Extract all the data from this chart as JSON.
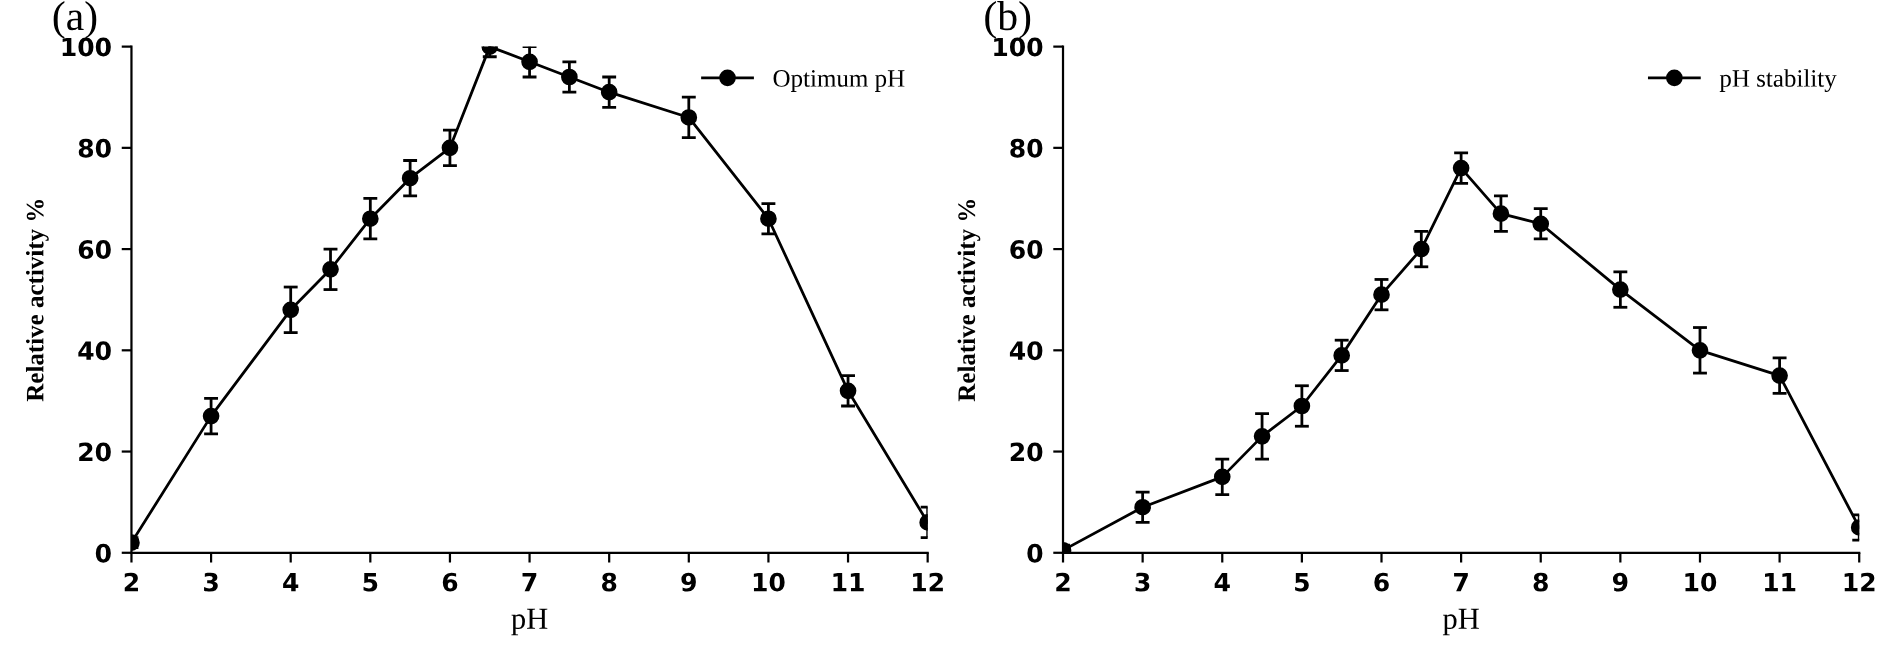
{
  "chart_data": [
    {
      "type": "line",
      "title": "(a)",
      "xlabel": "pH",
      "ylabel": "Relative activity %",
      "xlim": [
        2,
        12
      ],
      "xticks": [
        2,
        3,
        4,
        5,
        6,
        7,
        8,
        9,
        10,
        11,
        12
      ],
      "ylim": [
        0,
        100
      ],
      "yticks": [
        0,
        20,
        40,
        60,
        80,
        100
      ],
      "grid": false,
      "legend": "top right",
      "marker": "circle",
      "line_style": "solid",
      "x": [
        2,
        3,
        4,
        4.5,
        5,
        5.5,
        6,
        6.5,
        7,
        7.5,
        8,
        9,
        10,
        11,
        12
      ],
      "series": [
        {
          "name": "Optimum pH",
          "color": "#000000",
          "values": [
            2,
            27,
            48,
            56,
            66,
            74,
            80,
            100,
            97,
            94,
            91,
            86,
            66,
            32,
            6
          ],
          "errors": [
            1,
            3.5,
            4.5,
            4,
            4,
            3.5,
            3.5,
            2,
            3,
            3,
            3,
            4,
            3,
            3,
            3
          ]
        }
      ]
    },
    {
      "type": "line",
      "title": "(b)",
      "xlabel": "pH",
      "ylabel": "Relative activity %",
      "xlim": [
        2,
        12
      ],
      "xticks": [
        2,
        3,
        4,
        5,
        6,
        7,
        8,
        9,
        10,
        11,
        12
      ],
      "ylim": [
        0,
        100
      ],
      "yticks": [
        0,
        20,
        40,
        60,
        80,
        100
      ],
      "grid": false,
      "legend": "top right",
      "marker": "circle",
      "line_style": "solid",
      "x": [
        2,
        3,
        4,
        4.5,
        5,
        5.5,
        6,
        6.5,
        7,
        7.5,
        8,
        9,
        10,
        11,
        12
      ],
      "series": [
        {
          "name": "pH stability",
          "color": "#000000",
          "values": [
            0.5,
            9,
            15,
            23,
            29,
            39,
            51,
            60,
            76,
            67,
            65,
            52,
            40,
            35,
            5
          ],
          "errors": [
            1,
            3,
            3.5,
            4.5,
            4,
            3,
            3,
            3.5,
            3,
            3.5,
            3,
            3.5,
            4.5,
            3.5,
            2.5
          ]
        }
      ]
    }
  ]
}
